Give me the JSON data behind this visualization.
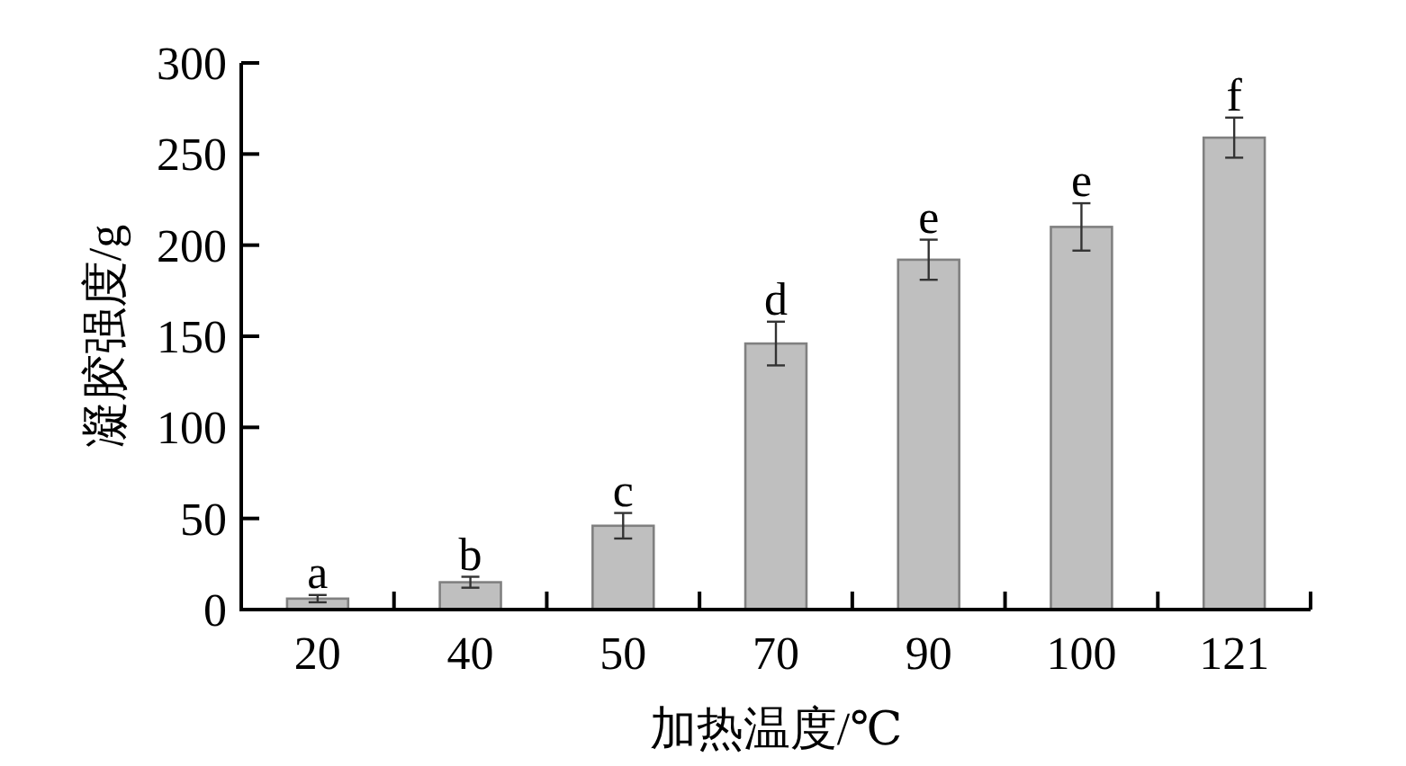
{
  "chart_data": {
    "type": "bar",
    "xlabel": "加热温度/℃",
    "ylabel": "凝胶强度/g",
    "categories": [
      "20",
      "40",
      "50",
      "70",
      "90",
      "100",
      "121"
    ],
    "values": [
      6,
      15,
      46,
      146,
      192,
      210,
      259
    ],
    "errors": [
      2,
      3,
      7,
      12,
      11,
      13,
      11
    ],
    "color": "#bfbfbf",
    "ylim": [
      0,
      300
    ],
    "yticks": [
      0,
      50,
      100,
      150,
      200,
      250,
      300
    ],
    "annotations": [
      {
        "text": "a",
        "x": "20",
        "y": 8
      },
      {
        "text": "b",
        "x": "40",
        "y": 18
      },
      {
        "text": "c",
        "x": "50",
        "y": 53
      },
      {
        "text": "d",
        "x": "70",
        "y": 158
      },
      {
        "text": "e",
        "x": "90",
        "y": 203
      },
      {
        "text": "e",
        "x": "100",
        "y": 223
      },
      {
        "text": "f",
        "x": "121",
        "y": 270
      }
    ]
  }
}
